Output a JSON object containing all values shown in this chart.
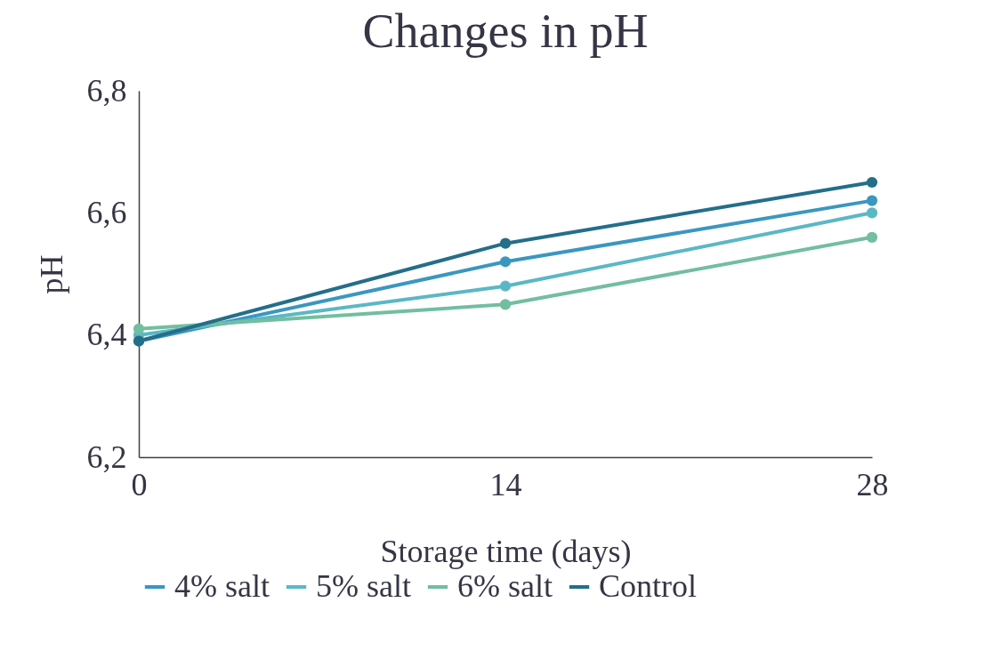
{
  "chart_data": {
    "type": "line",
    "title": "Changes in pH",
    "xlabel": "Storage time (days)",
    "ylabel": "pH",
    "x": [
      0,
      14,
      28
    ],
    "series": [
      {
        "name": "4% salt",
        "color": "#3a97c0",
        "values": [
          6.39,
          6.52,
          6.62
        ]
      },
      {
        "name": "5% salt",
        "color": "#5ab8c4",
        "values": [
          6.4,
          6.48,
          6.6
        ]
      },
      {
        "name": "6% salt",
        "color": "#72bea0",
        "values": [
          6.41,
          6.45,
          6.56
        ]
      },
      {
        "name": "Control",
        "color": "#246e8a",
        "values": [
          6.39,
          6.55,
          6.65
        ]
      }
    ],
    "xlim": [
      0,
      28
    ],
    "xticks": [
      0,
      14,
      28
    ],
    "ylim": [
      6.2,
      6.8
    ],
    "yticks": [
      {
        "value": 6.2,
        "label": "6,2"
      },
      {
        "value": 6.4,
        "label": "6,4"
      },
      {
        "value": 6.6,
        "label": "6,6"
      },
      {
        "value": 6.8,
        "label": "6,8"
      }
    ],
    "grid": false,
    "legend": "bottom",
    "marker": "circle",
    "line_style": "solid"
  }
}
